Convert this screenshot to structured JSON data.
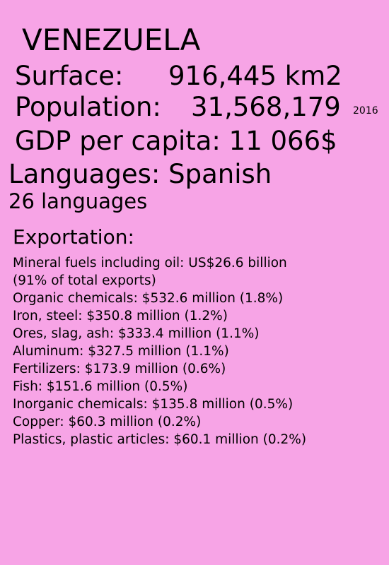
{
  "country": "VENEZUELA",
  "surface": {
    "label": "Surface:",
    "value": "916,445 km2"
  },
  "population": {
    "label": "Population:",
    "value": "31,568,179",
    "year": "2016"
  },
  "gdp": "GDP per capita: 11 066$",
  "languages": {
    "main": "Languages: Spanish",
    "count": "26 languages"
  },
  "exportation": {
    "title": "Exportation:",
    "lines": [
      "Mineral fuels including oil: US$26.6 billion",
      "(91% of total exports)",
      "Organic chemicals: $532.6 million (1.8%)",
      "Iron, steel: $350.8 million (1.2%)",
      "Ores, slag, ash: $333.4 million (1.1%)",
      "Aluminum: $327.5 million (1.1%)",
      "Fertilizers: $173.9 million (0.6%)",
      "Fish: $151.6 million (0.5%)",
      "Inorganic chemicals: $135.8 million (0.5%)",
      "Copper: $60.3 million (0.2%)",
      "Plastics, plastic articles: $60.1 million (0.2%)"
    ]
  },
  "colors": {
    "background": "#f7a4e6",
    "text": "#000000"
  }
}
